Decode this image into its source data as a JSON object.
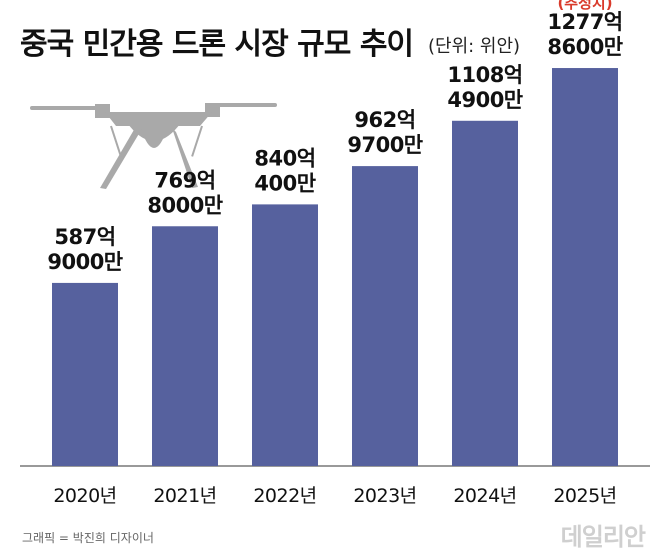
{
  "chart_data": {
    "type": "bar",
    "title": "중국 민간용 드론 시장 규모 추이",
    "unit": "(단위: 위안)",
    "categories": [
      "2020년",
      "2021년",
      "2022년",
      "2023년",
      "2024년",
      "2025년"
    ],
    "values": [
      58790000000,
      76980000000,
      84004000000,
      96297000000,
      110849000000,
      127786000000
    ],
    "value_labels": [
      [
        "587억",
        "9000만"
      ],
      [
        "769억",
        "8000만"
      ],
      [
        "840억",
        "400만"
      ],
      [
        "962억",
        "9700만"
      ],
      [
        "1108억",
        "4900만"
      ],
      [
        "1277억",
        "8600만"
      ]
    ],
    "estimate_note": "(추정치)",
    "estimate_index": 5,
    "ylim": [
      0,
      140000000000
    ],
    "grid": false,
    "bar_color": "#56619e"
  },
  "footer": {
    "credit": "그래픽 = 박진희 디자이너",
    "brand": "데일리안"
  },
  "icons": {
    "drone": "drone-icon"
  }
}
